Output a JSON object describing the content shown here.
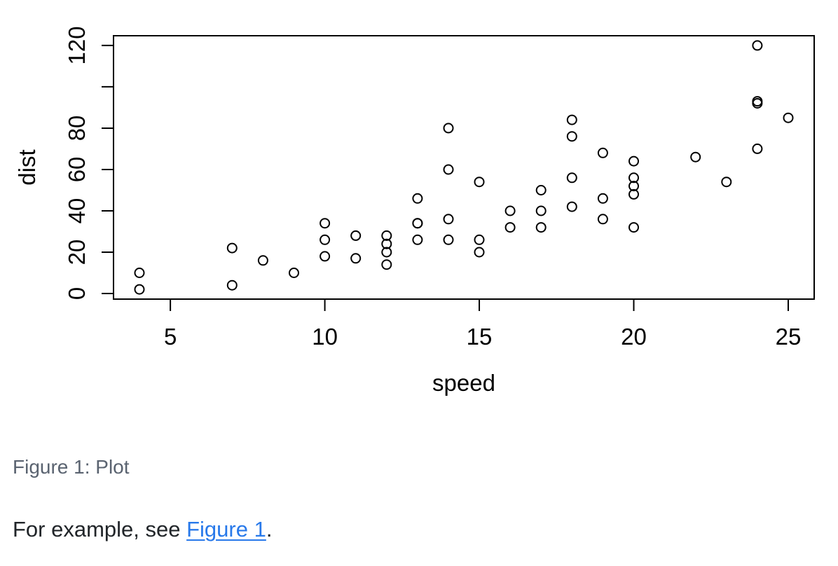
{
  "figure": {
    "caption": "Figure 1: Plot",
    "caption_color": "#5a6370"
  },
  "paragraph": {
    "prefix": "For example, see ",
    "link_text": "Figure 1",
    "suffix": ".",
    "text_color": "#212529",
    "link_color": "#2879ea"
  },
  "chart_data": {
    "type": "scatter",
    "title": "",
    "xlabel": "speed",
    "ylabel": "dist",
    "x": [
      4,
      4,
      7,
      7,
      8,
      9,
      10,
      10,
      10,
      11,
      11,
      12,
      12,
      12,
      12,
      13,
      13,
      13,
      13,
      14,
      14,
      14,
      14,
      15,
      15,
      15,
      16,
      16,
      17,
      17,
      17,
      18,
      18,
      18,
      18,
      19,
      19,
      19,
      20,
      20,
      20,
      20,
      20,
      22,
      23,
      24,
      24,
      24,
      24,
      25
    ],
    "y": [
      2,
      10,
      4,
      22,
      16,
      10,
      18,
      26,
      34,
      17,
      28,
      14,
      20,
      24,
      28,
      26,
      34,
      34,
      46,
      26,
      36,
      60,
      80,
      20,
      26,
      54,
      32,
      40,
      32,
      40,
      50,
      42,
      56,
      76,
      84,
      36,
      46,
      68,
      32,
      48,
      52,
      56,
      64,
      66,
      54,
      70,
      92,
      93,
      120,
      85
    ],
    "xlim": [
      3.16,
      25.84
    ],
    "ylim": [
      -2.72,
      124.72
    ],
    "xticks": [
      5,
      10,
      15,
      20,
      25
    ],
    "yticks": [
      0,
      20,
      40,
      60,
      80,
      100,
      120
    ],
    "ytick_labels": [
      "0",
      "20",
      "40",
      "60",
      "80",
      "",
      "120"
    ],
    "marker": "open-circle",
    "point_color": "#000000",
    "axis_color": "#000000",
    "grid": false,
    "legend": false
  }
}
